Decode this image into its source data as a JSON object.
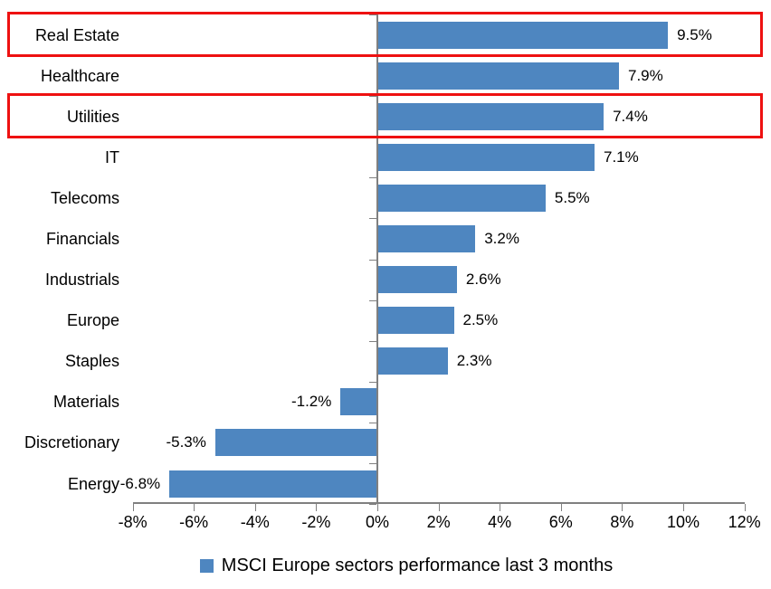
{
  "chart_data": {
    "type": "bar",
    "orientation": "horizontal",
    "title": "",
    "legend": "MSCI Europe sectors performance last 3 months",
    "legend_position": "bottom",
    "grid": false,
    "categories": [
      "Real Estate",
      "Healthcare",
      "Utilities",
      "IT",
      "Telecoms",
      "Financials",
      "Industrials",
      "Europe",
      "Staples",
      "Materials",
      "Discretionary",
      "Energy"
    ],
    "values": [
      9.5,
      7.9,
      7.4,
      7.1,
      5.5,
      3.2,
      2.6,
      2.5,
      2.3,
      -1.2,
      -5.3,
      -6.8
    ],
    "data_labels": [
      "9.5%",
      "7.9%",
      "7.4%",
      "7.1%",
      "5.5%",
      "3.2%",
      "2.6%",
      "2.5%",
      "2.3%",
      "-1.2%",
      "-5.3%",
      "-6.8%"
    ],
    "x_ticks": [
      "-8%",
      "-6%",
      "-4%",
      "-2%",
      "0%",
      "2%",
      "4%",
      "6%",
      "8%",
      "10%",
      "12%"
    ],
    "x_tick_values": [
      -8,
      -6,
      -4,
      -2,
      0,
      2,
      4,
      6,
      8,
      10,
      12
    ],
    "xlim": [
      -8,
      12
    ],
    "highlighted_categories": [
      "Real Estate",
      "Utilities"
    ],
    "colors": {
      "bar": "#4E86C0",
      "highlight_box": "#EE1111",
      "axis": "#808080",
      "text": "#000000",
      "background": "#FFFFFF"
    }
  }
}
